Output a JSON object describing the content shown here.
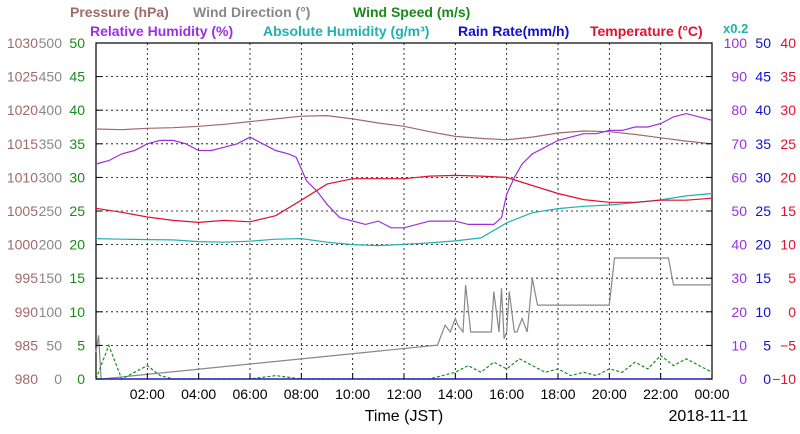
{
  "chart_data": {
    "type": "line",
    "title": "",
    "xlabel": "Time (JST)",
    "date_label": "2018-11-11",
    "grid": true,
    "x_range_hours": [
      0,
      24
    ],
    "x_ticks": [
      "02:00",
      "04:00",
      "06:00",
      "08:00",
      "10:00",
      "12:00",
      "14:00",
      "16:00",
      "18:00",
      "20:00",
      "22:00",
      "00:00"
    ],
    "legend": {
      "row1": [
        {
          "text": "Pressure (hPa)",
          "color": "#a06a6a"
        },
        {
          "text": "Wind Direction (°)",
          "color": "#888888"
        },
        {
          "text": "Wind Speed (m/s)",
          "color": "#1a8a1a"
        }
      ],
      "row2": [
        {
          "text": "Relative Humidity (%)",
          "color": "#9a30e0"
        },
        {
          "text": "Absolute Humidity (g/m³)",
          "color": "#20b0b0"
        },
        {
          "text": "Rain Rate(mm/h)",
          "color": "#1010d0"
        },
        {
          "text": "Temperature (°C)",
          "color": "#e01030"
        }
      ],
      "scale_note": {
        "text": "x0.2",
        "color": "#20b0b0"
      }
    },
    "axes": {
      "pressure": {
        "color": "#a06a6a",
        "ticks": [
          "980",
          "985",
          "990",
          "995",
          "1000",
          "1005",
          "1010",
          "1015",
          "1020",
          "1025",
          "1030"
        ],
        "range": [
          980,
          1030
        ]
      },
      "wind_direction": {
        "color": "#888888",
        "ticks": [
          "0",
          "50",
          "100",
          "150",
          "200",
          "250",
          "300",
          "350",
          "400",
          "450",
          "500"
        ],
        "range": [
          0,
          500
        ]
      },
      "wind_speed": {
        "color": "#1a8a1a",
        "ticks": [
          "0",
          "5",
          "10",
          "15",
          "20",
          "25",
          "30",
          "35",
          "40",
          "45",
          "50"
        ],
        "range": [
          0,
          50
        ]
      },
      "humidity": {
        "color": "#9a30e0",
        "ticks": [
          "0",
          "10",
          "20",
          "30",
          "40",
          "50",
          "60",
          "70",
          "80",
          "90",
          "100"
        ],
        "range": [
          0,
          100
        ]
      },
      "rain_rate": {
        "color": "#1010d0",
        "ticks": [
          "0",
          "5",
          "10",
          "15",
          "20",
          "25",
          "30",
          "35",
          "40",
          "45",
          "50"
        ],
        "range": [
          0,
          50
        ]
      },
      "temperature": {
        "color": "#e01030",
        "ticks": [
          "−10",
          "−5",
          "0",
          "5",
          "10",
          "15",
          "20",
          "25",
          "30",
          "35",
          "40"
        ],
        "range": [
          -10,
          40
        ]
      }
    },
    "series": [
      {
        "name": "Pressure (hPa)",
        "axis": "pressure",
        "color": "#a06a6a",
        "x": [
          0,
          1,
          2,
          3,
          4,
          5,
          6,
          7,
          8,
          9,
          10,
          11,
          12,
          13,
          14,
          15,
          16,
          17,
          18,
          19,
          20,
          21,
          22,
          23,
          24
        ],
        "y": [
          1017.2,
          1017.1,
          1017.3,
          1017.4,
          1017.6,
          1017.9,
          1018.3,
          1018.7,
          1019.1,
          1019.2,
          1018.7,
          1018.1,
          1017.6,
          1016.8,
          1016.1,
          1015.8,
          1015.6,
          1016.0,
          1016.6,
          1016.9,
          1016.8,
          1016.4,
          1015.9,
          1015.4,
          1015.0
        ]
      },
      {
        "name": "Wind Direction (°)",
        "axis": "wind_direction",
        "color": "#888888",
        "x": [
          0,
          0.1,
          0.2,
          13.2,
          13.3,
          13.5,
          13.6,
          13.8,
          14,
          14.1,
          14.3,
          14.4,
          14.6,
          15.2,
          15.4,
          15.5,
          15.7,
          15.8,
          15.9,
          16,
          16.1,
          16.3,
          16.4,
          16.6,
          16.8,
          17,
          17.2,
          17.5,
          17.6,
          17.8,
          18,
          18.5,
          19,
          19.5,
          19.8,
          20,
          20.2,
          21,
          21.5,
          22,
          22.3,
          22.5,
          23,
          24
        ],
        "y": [
          40,
          65,
          0,
          50,
          50,
          70,
          80,
          70,
          90,
          80,
          70,
          140,
          70,
          70,
          70,
          130,
          70,
          135,
          60,
          70,
          130,
          70,
          70,
          90,
          70,
          150,
          110,
          110,
          110,
          110,
          110,
          110,
          110,
          110,
          110,
          110,
          180,
          180,
          180,
          180,
          180,
          140,
          140,
          140
        ]
      },
      {
        "name": "Wind Speed (m/s)",
        "axis": "wind_speed",
        "color": "#1a8a1a",
        "x": [
          0,
          0.5,
          1,
          1.5,
          2,
          2.5,
          3,
          4,
          5,
          6,
          7,
          8,
          9,
          10,
          11,
          12,
          13,
          13.5,
          14,
          14.5,
          15,
          15.5,
          16,
          16.5,
          17,
          17.5,
          18,
          18.5,
          19,
          19.5,
          20,
          20.5,
          21,
          21.5,
          22,
          22.5,
          23,
          23.5,
          24
        ],
        "y": [
          0,
          5,
          0,
          1,
          2,
          0.5,
          0,
          0,
          0,
          0,
          0.5,
          0,
          0,
          0,
          0,
          0,
          0,
          0.5,
          1,
          2,
          1,
          2.5,
          1.5,
          3,
          2,
          1,
          1.5,
          0.5,
          1,
          0.5,
          1.5,
          1,
          2.5,
          1.5,
          3.5,
          2,
          3,
          2,
          1
        ]
      },
      {
        "name": "Relative Humidity (%)",
        "axis": "humidity",
        "color": "#9a30e0",
        "x": [
          0,
          0.5,
          1,
          1.5,
          2,
          2.5,
          3,
          3.5,
          4,
          4.5,
          5,
          5.5,
          6,
          6.5,
          7,
          7.5,
          7.8,
          8.2,
          8.6,
          9,
          9.5,
          10,
          10.5,
          11,
          11.5,
          12,
          12.5,
          13,
          13.5,
          14,
          14.5,
          15,
          15.5,
          15.8,
          16,
          16.3,
          16.6,
          17,
          17.5,
          18,
          18.5,
          19,
          19.5,
          20,
          20.5,
          21,
          21.5,
          22,
          22.5,
          23,
          23.5,
          24
        ],
        "y": [
          64,
          65,
          67,
          68,
          70,
          71,
          71,
          70,
          68,
          68,
          69,
          70,
          72,
          70,
          68,
          67,
          66,
          59,
          56,
          52,
          48,
          47,
          46,
          47,
          45,
          45,
          46,
          47,
          47,
          47,
          46,
          46,
          46,
          48,
          55,
          60,
          64,
          67,
          69,
          71,
          72,
          73,
          73,
          74,
          74,
          75,
          75,
          76,
          78,
          79,
          78,
          77
        ]
      },
      {
        "name": "Absolute Humidity (g/m³)",
        "axis": "humidity",
        "color": "#20b0b0",
        "x": [
          0,
          1,
          2,
          3,
          4,
          5,
          6,
          7,
          8,
          9,
          10,
          11,
          12,
          13,
          14,
          15,
          16,
          17,
          18,
          19,
          20,
          21,
          22,
          23,
          24
        ],
        "y": [
          41.8,
          41.6,
          41.5,
          41.4,
          40.9,
          40.7,
          41.0,
          41.6,
          41.8,
          40.7,
          40.0,
          39.7,
          40.1,
          40.5,
          41.1,
          42.0,
          46.5,
          49.5,
          50.7,
          51.4,
          51.8,
          52.5,
          53.3,
          54.5,
          55.2
        ]
      },
      {
        "name": "Rain Rate(mm/h)",
        "axis": "rain_rate",
        "color": "#1010d0",
        "x": [
          0,
          24
        ],
        "y": [
          0,
          0
        ]
      },
      {
        "name": "Temperature (°C)",
        "axis": "temperature",
        "color": "#e01030",
        "x": [
          0,
          1,
          2,
          3,
          4,
          5,
          6,
          7,
          8,
          9,
          10,
          11,
          12,
          13,
          14,
          15,
          16,
          17,
          18,
          19,
          20,
          21,
          22,
          23,
          24
        ],
        "y": [
          15.4,
          14.8,
          14.1,
          13.6,
          13.3,
          13.6,
          13.4,
          14.3,
          16.6,
          19.0,
          19.8,
          19.8,
          19.8,
          20.2,
          20.3,
          20.2,
          20.0,
          18.8,
          17.6,
          16.7,
          16.3,
          16.3,
          16.6,
          16.6,
          16.9
        ]
      }
    ]
  }
}
